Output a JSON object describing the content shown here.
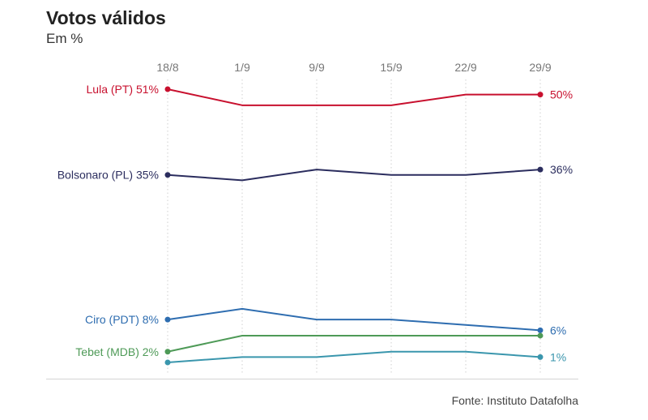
{
  "title": "Votos válidos",
  "subtitle": "Em %",
  "source": "Fonte: Instituto Datafolha",
  "chart_data": {
    "type": "line",
    "title": "Votos válidos",
    "subtitle": "Em %",
    "xlabel": "",
    "ylabel": "",
    "x": [
      "18/8",
      "1/9",
      "9/9",
      "15/9",
      "22/9",
      "29/9"
    ],
    "ylim": [
      0,
      52
    ],
    "grid": "vertical dotted",
    "series": [
      {
        "name": "Lula (PT)",
        "color": "#c8102e",
        "values": [
          51,
          48,
          48,
          48,
          50,
          50
        ],
        "start_label": "Lula (PT) 51%",
        "end_label": "50%"
      },
      {
        "name": "Bolsonaro (PL)",
        "color": "#2b2d5e",
        "values": [
          35,
          34,
          36,
          35,
          35,
          36
        ],
        "start_label": "Bolsonaro (PL) 35%",
        "end_label": "36%"
      },
      {
        "name": "Ciro (PDT)",
        "color": "#2e6db0",
        "values": [
          8,
          10,
          8,
          8,
          7,
          6
        ],
        "start_label": "Ciro (PDT) 8%",
        "end_label": "6%"
      },
      {
        "name": "Tebet (MDB)",
        "color": "#4e9a57",
        "values": [
          2,
          5,
          5,
          5,
          5,
          5
        ],
        "start_label": "Tebet (MDB) 2%",
        "end_label": ""
      },
      {
        "name": "",
        "color": "#3a96ad",
        "values": [
          0,
          1,
          1,
          2,
          2,
          1
        ],
        "start_label": "",
        "end_label": "1%"
      }
    ]
  }
}
